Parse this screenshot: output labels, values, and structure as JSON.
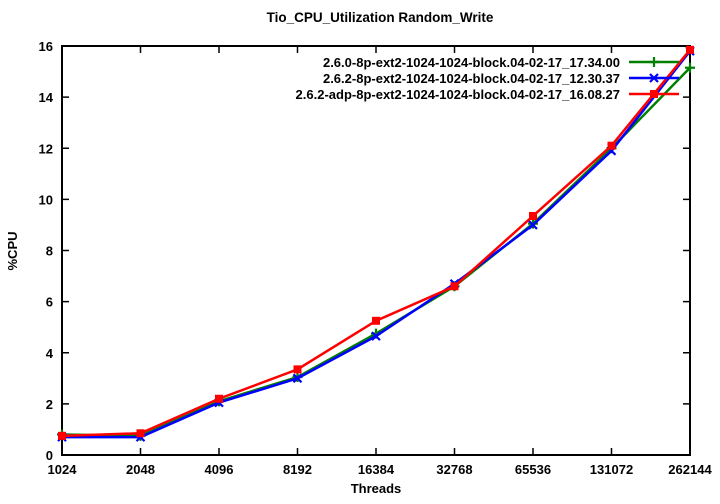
{
  "chart_data": {
    "type": "line",
    "title": "Tio_CPU_Utilization Random_Write",
    "xlabel": "Threads",
    "ylabel": "%CPU",
    "x_scale": "log2-categorical",
    "categories": [
      "1024",
      "2048",
      "4096",
      "8192",
      "16384",
      "32768",
      "65536",
      "131072",
      "262144"
    ],
    "ylim": [
      0,
      16
    ],
    "yticks": [
      0,
      2,
      4,
      6,
      8,
      10,
      12,
      14,
      16
    ],
    "grid": false,
    "legend_position": "top-right-inside",
    "series": [
      {
        "name": "2.6.0-8p-ext2-1024-1024-block.04-02-17_17.34.00",
        "color": "#008000",
        "marker": "plus",
        "values": [
          0.8,
          0.75,
          2.1,
          3.05,
          4.75,
          6.6,
          9.05,
          12.0,
          15.15
        ]
      },
      {
        "name": "2.6.2-8p-ext2-1024-1024-block.04-02-17_12.30.37",
        "color": "#0000ff",
        "marker": "x",
        "values": [
          0.7,
          0.7,
          2.05,
          3.0,
          4.65,
          6.7,
          9.0,
          11.9,
          15.8
        ]
      },
      {
        "name": "2.6.2-adp-8p-ext2-1024-1024-block.04-02-17_16.08.27",
        "color": "#ff0000",
        "marker": "square",
        "values": [
          0.75,
          0.85,
          2.2,
          3.35,
          5.25,
          6.6,
          9.35,
          12.1,
          15.85
        ]
      }
    ],
    "frame": {
      "background": "#ffffff",
      "border_color": "#000000"
    }
  }
}
